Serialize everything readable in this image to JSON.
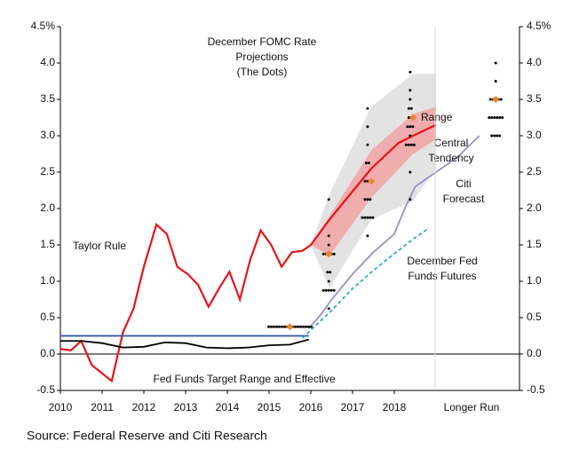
{
  "chart_data": {
    "type": "line",
    "source": "Source: Federal Reserve and Citi Research",
    "xlim": [
      2010,
      2021
    ],
    "xticks": [
      2010,
      2011,
      2012,
      2013,
      2014,
      2015,
      2016,
      2017,
      2018,
      {
        "value": 2019.85,
        "label": "Longer Run"
      }
    ],
    "ylim": [
      -0.5,
      4.5
    ],
    "yticks": [
      {
        "value": -0.5,
        "label": "-0.5"
      },
      {
        "value": 0,
        "label": "0.0"
      },
      {
        "value": 0.5,
        "label": "0.5"
      },
      {
        "value": 1,
        "label": "1.0"
      },
      {
        "value": 1.5,
        "label": "1.5"
      },
      {
        "value": 2,
        "label": "2.0"
      },
      {
        "value": 2.5,
        "label": "2.5"
      },
      {
        "value": 3,
        "label": "3.0"
      },
      {
        "value": 3.5,
        "label": "3.5"
      },
      {
        "value": 4,
        "label": "4.0"
      },
      {
        "value": 4.5,
        "label": "4.5%"
      }
    ],
    "y2lim": [
      -0.5,
      4.5
    ],
    "y2ticks": [
      {
        "value": -0.5,
        "label": "-0.5"
      },
      {
        "value": 0,
        "label": "0.0"
      },
      {
        "value": 0.5,
        "label": "0.5"
      },
      {
        "value": 1,
        "label": "1.0"
      },
      {
        "value": 1.5,
        "label": "1.5"
      },
      {
        "value": 2,
        "label": "2.0"
      },
      {
        "value": 2.5,
        "label": "2.5"
      },
      {
        "value": 3,
        "label": "3.0"
      },
      {
        "value": 3.5,
        "label": "3.5"
      },
      {
        "value": 4,
        "label": "4.0"
      },
      {
        "value": 4.5,
        "label": "4.5%"
      }
    ],
    "series": [
      {
        "name": "Taylor Rule",
        "color": "#e8131b",
        "x": [
          2010,
          2010.25,
          2010.5,
          2010.75,
          2011.23,
          2011.5,
          2011.75,
          2012,
          2012.3,
          2012.55,
          2012.8,
          2013.05,
          2013.3,
          2013.55,
          2013.8,
          2014.05,
          2014.3,
          2014.55,
          2014.8,
          2015.05,
          2015.3,
          2015.55,
          2015.8,
          2016,
          2016.45,
          2017.45,
          2018.1,
          2018.45,
          2019
        ],
        "values": [
          0.07,
          0.05,
          0.18,
          -0.15,
          -0.37,
          0.3,
          0.62,
          1.2,
          1.78,
          1.65,
          1.2,
          1.1,
          0.95,
          0.65,
          0.9,
          1.13,
          0.75,
          1.3,
          1.7,
          1.5,
          1.2,
          1.4,
          1.42,
          1.5,
          1.85,
          2.55,
          2.9,
          3.0,
          3.15
        ]
      },
      {
        "name": "Fed Funds Target Range and Effective",
        "color": "#2e4fa3",
        "x": [
          2010,
          2015.95
        ],
        "values": [
          0.25,
          0.25
        ]
      },
      {
        "color": "#000000",
        "x": [
          2010,
          2010.5,
          2011,
          2011.5,
          2012,
          2012.5,
          2013,
          2013.5,
          2014,
          2014.5,
          2015,
          2015.5,
          2015.95
        ],
        "values": [
          0.18,
          0.18,
          0.15,
          0.09,
          0.1,
          0.16,
          0.15,
          0.09,
          0.08,
          0.09,
          0.12,
          0.13,
          0.2
        ]
      },
      {
        "name": "Citi\nForecast",
        "color": "#9a8fc4",
        "x": [
          2015.95,
          2016.25,
          2016.5,
          2017,
          2017.5,
          2018,
          2018.25,
          2018.5,
          2019,
          2019.5,
          2020.04
        ],
        "values": [
          0.35,
          0.55,
          0.75,
          1.1,
          1.4,
          1.65,
          2.0,
          2.3,
          2.5,
          2.7,
          3.0
        ]
      },
      {
        "name": "December Fed\nFunds Futures",
        "color": "#2aa7e0",
        "dashed": true,
        "x": [
          2015.8,
          2016,
          2016.5,
          2017,
          2017.5,
          2018,
          2018.5,
          2018.8
        ],
        "values": [
          0.22,
          0.33,
          0.6,
          0.9,
          1.15,
          1.38,
          1.6,
          1.72
        ]
      }
    ],
    "bands": [
      {
        "name": "Range",
        "color": "#e3e3e3",
        "x": [
          2016,
          2016.45,
          2017.45,
          2018.45,
          2019
        ],
        "upper": [
          1.5,
          2.2,
          3.4,
          3.85,
          3.85
        ],
        "lower": [
          1.5,
          0.9,
          1.85,
          2.1,
          2.55
        ]
      },
      {
        "name": "Central\nTendency",
        "color": "#f2a3a3",
        "x": [
          2016,
          2016.45,
          2017.45,
          2018.45,
          2019
        ],
        "upper": [
          1.5,
          1.9,
          2.8,
          3.3,
          3.4
        ],
        "lower": [
          1.5,
          1.35,
          2.15,
          2.75,
          2.95
        ]
      }
    ],
    "dots": {
      "name": "December FOMC Rate\nProjections\n(The Dots)",
      "color": "#000000",
      "groups": [
        {
          "x": 2015.5,
          "values": [
            0.375,
            0.375,
            0.375,
            0.375,
            0.375,
            0.375,
            0.375,
            0.375,
            0.375,
            0.375,
            0.375,
            0.375,
            0.375,
            0.375,
            0.375,
            0.375,
            0.375
          ]
        },
        {
          "x": 2016.43,
          "values": [
            2.125,
            1.625,
            1.5,
            1.375,
            1.375,
            1.375,
            1.375,
            1.375,
            1.125,
            1.125,
            1.0,
            0.875,
            0.875,
            0.875,
            0.875,
            0.875,
            0.625
          ]
        },
        {
          "x": 2017.36,
          "values": [
            3.375,
            3.125,
            2.875,
            2.625,
            2.625,
            2.375,
            2.375,
            2.375,
            2.125,
            2.125,
            2.125,
            1.875,
            1.875,
            1.875,
            1.875,
            1.875,
            1.625
          ]
        },
        {
          "x": 2018.38,
          "values": [
            3.875,
            3.625,
            3.5,
            3.375,
            3.375,
            3.25,
            3.25,
            3.125,
            3.125,
            3.125,
            3.0,
            2.875,
            2.875,
            2.875,
            2.875,
            2.5,
            2.125
          ]
        },
        {
          "x": 2020.43,
          "values": [
            4.0,
            3.75,
            3.5,
            3.5,
            3.5,
            3.5,
            3.5,
            3.25,
            3.25,
            3.25,
            3.25,
            3.25,
            3.25,
            3.0,
            3.0,
            3.0,
            3.0
          ]
        }
      ]
    },
    "medians": {
      "color": "#e8862a",
      "x": [
        2015.5,
        2016.43,
        2017.45,
        2018.45,
        2020.43
      ],
      "values": [
        0.375,
        1.375,
        2.375,
        3.25,
        3.5
      ]
    }
  }
}
